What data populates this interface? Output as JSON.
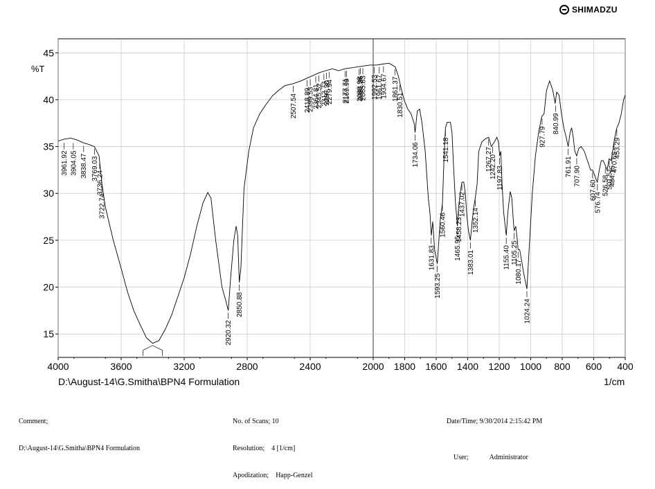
{
  "header": {
    "brand": "SHIMADZU"
  },
  "chart_data": {
    "type": "line",
    "y_unit": "%T",
    "x_unit": "1/cm",
    "file_path": "D:\\August-14\\G.Smitha\\BPN4 Formulation",
    "xlim": [
      4000,
      400
    ],
    "ylim": [
      12.5,
      46.5
    ],
    "x_ticks": [
      4000,
      3600,
      3200,
      2800,
      2400,
      2000,
      1600,
      1200,
      800,
      400
    ],
    "x_tick_labels": [
      "4000",
      "3600",
      "3200",
      "2800",
      "2400",
      "2000",
      "1800",
      "1600",
      "1400",
      "1200",
      "1000",
      "800",
      "600",
      "400"
    ],
    "x_tick_values": [
      4000,
      3600,
      3200,
      2800,
      2400,
      2000,
      1800,
      1600,
      1400,
      1200,
      1000,
      800,
      600,
      400
    ],
    "y_ticks": [
      15,
      20,
      25,
      30,
      35,
      40,
      45
    ],
    "grid": true,
    "series": [
      {
        "values": [
          [
            4000,
            35.6
          ],
          [
            3960,
            35.8
          ],
          [
            3920,
            35.9
          ],
          [
            3880,
            35.7
          ],
          [
            3840,
            35.4
          ],
          [
            3800,
            35.2
          ],
          [
            3770,
            35.0
          ],
          [
            3740,
            34.0
          ],
          [
            3722,
            31.0
          ],
          [
            3700,
            28.5
          ],
          [
            3650,
            25.0
          ],
          [
            3600,
            22.0
          ],
          [
            3560,
            19.5
          ],
          [
            3520,
            17.5
          ],
          [
            3480,
            16.0
          ],
          [
            3440,
            14.6
          ],
          [
            3400,
            14.0
          ],
          [
            3360,
            14.3
          ],
          [
            3320,
            15.5
          ],
          [
            3280,
            17.0
          ],
          [
            3240,
            19.0
          ],
          [
            3200,
            21.0
          ],
          [
            3160,
            23.5
          ],
          [
            3120,
            26.5
          ],
          [
            3080,
            29.0
          ],
          [
            3050,
            30.1
          ],
          [
            3030,
            29.5
          ],
          [
            3000,
            25.0
          ],
          [
            2960,
            20.0
          ],
          [
            2935,
            18.5
          ],
          [
            2920,
            17.5
          ],
          [
            2905,
            21.0
          ],
          [
            2885,
            25.0
          ],
          [
            2870,
            26.5
          ],
          [
            2860,
            25.5
          ],
          [
            2850,
            20.5
          ],
          [
            2840,
            22.0
          ],
          [
            2820,
            30.5
          ],
          [
            2790,
            34.5
          ],
          [
            2760,
            37.0
          ],
          [
            2720,
            38.5
          ],
          [
            2680,
            39.5
          ],
          [
            2640,
            40.4
          ],
          [
            2600,
            41.0
          ],
          [
            2560,
            41.5
          ],
          [
            2510,
            41.7
          ],
          [
            2460,
            42.0
          ],
          [
            2420,
            42.3
          ],
          [
            2380,
            42.6
          ],
          [
            2340,
            42.9
          ],
          [
            2300,
            43.1
          ],
          [
            2260,
            43.3
          ],
          [
            2220,
            43.1
          ],
          [
            2180,
            43.3
          ],
          [
            2140,
            43.4
          ],
          [
            2100,
            43.5
          ],
          [
            2060,
            43.6
          ],
          [
            2020,
            43.7
          ],
          [
            1980,
            43.7
          ],
          [
            1940,
            43.8
          ],
          [
            1900,
            43.9
          ],
          [
            1860,
            43.5
          ],
          [
            1840,
            42.5
          ],
          [
            1820,
            41.0
          ],
          [
            1800,
            39.8
          ],
          [
            1780,
            39.0
          ],
          [
            1760,
            38.5
          ],
          [
            1740,
            37.5
          ],
          [
            1734,
            36.5
          ],
          [
            1720,
            38.8
          ],
          [
            1705,
            39.0
          ],
          [
            1690,
            37.5
          ],
          [
            1670,
            34.5
          ],
          [
            1650,
            29.5
          ],
          [
            1640,
            28.0
          ],
          [
            1631,
            25.5
          ],
          [
            1622,
            27.0
          ],
          [
            1610,
            24.0
          ],
          [
            1593,
            22.5
          ],
          [
            1585,
            24.5
          ],
          [
            1575,
            27.0
          ],
          [
            1560,
            29.0
          ],
          [
            1550,
            34.0
          ],
          [
            1541,
            37.0
          ],
          [
            1530,
            37.6
          ],
          [
            1510,
            37.6
          ],
          [
            1500,
            36.5
          ],
          [
            1490,
            33.0
          ],
          [
            1478,
            29.0
          ],
          [
            1465,
            26.5
          ],
          [
            1458,
            28.5
          ],
          [
            1448,
            30.0
          ],
          [
            1437,
            31.2
          ],
          [
            1425,
            31.2
          ],
          [
            1415,
            30.0
          ],
          [
            1405,
            27.5
          ],
          [
            1395,
            26.0
          ],
          [
            1383,
            25.0
          ],
          [
            1372,
            27.0
          ],
          [
            1362,
            28.5
          ],
          [
            1352,
            29.5
          ],
          [
            1340,
            31.0
          ],
          [
            1330,
            34.5
          ],
          [
            1310,
            35.5
          ],
          [
            1290,
            35.8
          ],
          [
            1267,
            36.0
          ],
          [
            1250,
            35.0
          ],
          [
            1242,
            35.2
          ],
          [
            1230,
            35.5
          ],
          [
            1215,
            36.0
          ],
          [
            1205,
            35.5
          ],
          [
            1197,
            34.0
          ],
          [
            1190,
            34.5
          ],
          [
            1182,
            31.0
          ],
          [
            1172,
            28.0
          ],
          [
            1155,
            25.5
          ],
          [
            1145,
            28.0
          ],
          [
            1130,
            30.2
          ],
          [
            1120,
            29.5
          ],
          [
            1110,
            27.0
          ],
          [
            1105,
            26.0
          ],
          [
            1095,
            26.5
          ],
          [
            1085,
            25.0
          ],
          [
            1080,
            24.0
          ],
          [
            1070,
            24.0
          ],
          [
            1060,
            23.0
          ],
          [
            1045,
            21.5
          ],
          [
            1024,
            19.8
          ],
          [
            1010,
            24.0
          ],
          [
            990,
            30.0
          ],
          [
            970,
            34.0
          ],
          [
            950,
            36.5
          ],
          [
            930,
            38.2
          ],
          [
            915,
            38.5
          ],
          [
            900,
            41.0
          ],
          [
            880,
            42.0
          ],
          [
            860,
            41.0
          ],
          [
            845,
            39.6
          ],
          [
            835,
            40.8
          ],
          [
            820,
            40.5
          ],
          [
            805,
            38.5
          ],
          [
            790,
            37.0
          ],
          [
            775,
            36.0
          ],
          [
            762,
            35.0
          ],
          [
            750,
            36.5
          ],
          [
            740,
            37.0
          ],
          [
            730,
            36.0
          ],
          [
            720,
            34.5
          ],
          [
            708,
            34.0
          ],
          [
            695,
            34.8
          ],
          [
            680,
            35.0
          ],
          [
            660,
            34.5
          ],
          [
            640,
            33.5
          ],
          [
            620,
            32.5
          ],
          [
            608,
            32.5
          ],
          [
            595,
            32.0
          ],
          [
            585,
            31.5
          ],
          [
            577,
            31.2
          ],
          [
            565,
            32.5
          ],
          [
            552,
            33.5
          ],
          [
            540,
            33.5
          ],
          [
            527,
            33.0
          ],
          [
            515,
            32.5
          ],
          [
            502,
            33.7
          ],
          [
            490,
            33.5
          ],
          [
            484,
            34.0
          ],
          [
            471,
            35.5
          ],
          [
            460,
            36.5
          ],
          [
            453,
            37.0
          ],
          [
            440,
            37.5
          ],
          [
            425,
            38.5
          ],
          [
            410,
            40.0
          ],
          [
            400,
            40.5
          ]
        ]
      }
    ],
    "peaks": [
      {
        "label": "3961.92",
        "x": 3961.92,
        "y": 35.6
      },
      {
        "label": "3904.05",
        "x": 3904.05,
        "y": 35.6
      },
      {
        "label": "3838.47",
        "x": 3838.47,
        "y": 35.3
      },
      {
        "label": "3769.03",
        "x": 3769.03,
        "y": 35.0
      },
      {
        "label": "3736.24",
        "x": 3736.24,
        "y": 33.5
      },
      {
        "label": "3722.74",
        "x": 3722.74,
        "y": 31.0
      },
      {
        "label": "2920.32",
        "x": 2920.32,
        "y": 17.5
      },
      {
        "label": "2850.88",
        "x": 2850.88,
        "y": 20.5
      },
      {
        "label": "2507.54",
        "x": 2507.54,
        "y": 41.7
      },
      {
        "label": "2418.89",
        "x": 2418.89,
        "y": 42.3
      },
      {
        "label": "2399.53",
        "x": 2399.53,
        "y": 42.4
      },
      {
        "label": "2364.81",
        "x": 2364.81,
        "y": 42.7
      },
      {
        "label": "2345.52",
        "x": 2345.52,
        "y": 42.8
      },
      {
        "label": "2312.73",
        "x": 2312.73,
        "y": 43.0
      },
      {
        "label": "2297.30",
        "x": 2297.3,
        "y": 43.1
      },
      {
        "label": "2279.94",
        "x": 2279.94,
        "y": 43.2
      },
      {
        "label": "2177.71",
        "x": 2177.71,
        "y": 43.3
      },
      {
        "label": "2169.99",
        "x": 2169.99,
        "y": 43.3
      },
      {
        "label": "2088.98",
        "x": 2088.98,
        "y": 43.5
      },
      {
        "label": "2081.26",
        "x": 2081.26,
        "y": 43.6
      },
      {
        "label": "2065.83",
        "x": 2065.83,
        "y": 43.6
      },
      {
        "label": "1992.53",
        "x": 1992.53,
        "y": 43.7
      },
      {
        "label": "1961.67",
        "x": 1961.67,
        "y": 43.7
      },
      {
        "label": "1934.67",
        "x": 1934.67,
        "y": 43.8
      },
      {
        "label": "1861.37",
        "x": 1861.37,
        "y": 43.5
      },
      {
        "label": "1830.51",
        "x": 1830.51,
        "y": 41.8
      },
      {
        "label": "1734.06",
        "x": 1734.06,
        "y": 36.5
      },
      {
        "label": "1631.83",
        "x": 1631.83,
        "y": 25.5
      },
      {
        "label": "1593.25",
        "x": 1593.25,
        "y": 22.5
      },
      {
        "label": "1560.46",
        "x": 1560.46,
        "y": 29.0
      },
      {
        "label": "1541.18",
        "x": 1541.18,
        "y": 37.0
      },
      {
        "label": "1465.95",
        "x": 1465.95,
        "y": 26.5
      },
      {
        "label": "1458.23",
        "x": 1458.23,
        "y": 28.5
      },
      {
        "label": "1437.02",
        "x": 1437.02,
        "y": 31.2
      },
      {
        "label": "1383.01",
        "x": 1383.01,
        "y": 25.0
      },
      {
        "label": "1352.14",
        "x": 1352.14,
        "y": 29.5
      },
      {
        "label": "1267.27",
        "x": 1267.27,
        "y": 36.0
      },
      {
        "label": "1242.20",
        "x": 1242.2,
        "y": 35.2
      },
      {
        "label": "1197.83",
        "x": 1197.83,
        "y": 34.0
      },
      {
        "label": "1155.40",
        "x": 1155.4,
        "y": 25.5
      },
      {
        "label": "1105.25",
        "x": 1105.25,
        "y": 26.0
      },
      {
        "label": "1080.17",
        "x": 1080.17,
        "y": 24.0
      },
      {
        "label": "1024.24",
        "x": 1024.24,
        "y": 19.8
      },
      {
        "label": "927.79",
        "x": 927.79,
        "y": 38.2
      },
      {
        "label": "840.99",
        "x": 840.99,
        "y": 39.6
      },
      {
        "label": "761.91",
        "x": 761.91,
        "y": 35.0
      },
      {
        "label": "707.90",
        "x": 707.9,
        "y": 34.0
      },
      {
        "label": "607.60",
        "x": 607.6,
        "y": 32.5
      },
      {
        "label": "576.74",
        "x": 576.74,
        "y": 31.2
      },
      {
        "label": "526.58",
        "x": 526.58,
        "y": 33.0
      },
      {
        "label": "501.51",
        "x": 501.51,
        "y": 33.7
      },
      {
        "label": "484.15",
        "x": 484.15,
        "y": 34.0
      },
      {
        "label": "470.65",
        "x": 470.65,
        "y": 35.5
      },
      {
        "label": "453.29",
        "x": 453.29,
        "y": 37.0
      }
    ],
    "extra_markers": [
      {
        "x": 3400,
        "y": 14.0
      }
    ]
  },
  "footer": {
    "comment_label": "Comment;",
    "comment_value": "D:\\August-14\\G.Smitha\\BPN4 Formulation",
    "scans": "No. of Scans; 10",
    "resolution": "Resolution;    4 [1/cm]",
    "apodization": "Apodization;    Happ-Genzel",
    "datetime": "Date/Time; 9/30/2014 2:15:42 PM",
    "user_label": "User;",
    "user_value": "Administrator"
  }
}
